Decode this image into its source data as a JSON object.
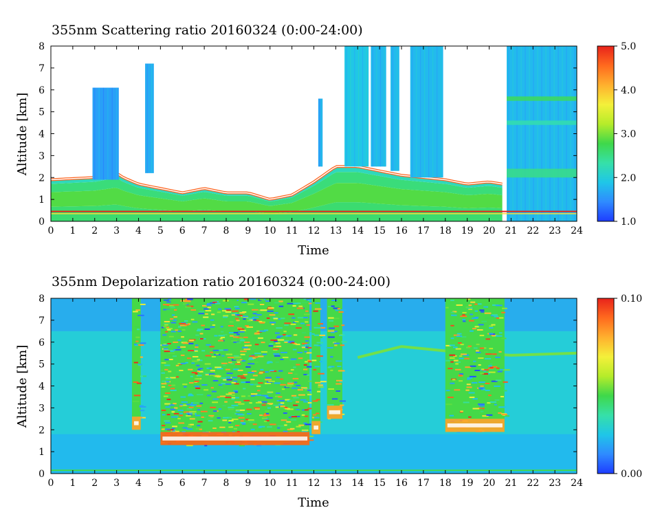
{
  "chart_data": [
    {
      "type": "heatmap",
      "title": "355nm Scattering ratio  20160324 (0:00-24:00)",
      "xlabel": "Time",
      "ylabel": "Altitude [km]",
      "xlim": [
        0,
        24
      ],
      "ylim": [
        0,
        8
      ],
      "x_ticks": [
        "0",
        "1",
        "2",
        "3",
        "4",
        "5",
        "6",
        "7",
        "8",
        "9",
        "10",
        "11",
        "12",
        "13",
        "14",
        "15",
        "16",
        "17",
        "18",
        "19",
        "20",
        "21",
        "22",
        "23",
        "24"
      ],
      "y_ticks": [
        "0",
        "1",
        "2",
        "3",
        "4",
        "5",
        "6",
        "7",
        "8"
      ],
      "colorbar": {
        "min": 1.0,
        "max": 5.0,
        "ticks": [
          "1.0",
          "2.0",
          "3.0",
          "4.0",
          "5.0"
        ],
        "tick_values": [
          1.0,
          2.0,
          3.0,
          4.0,
          5.0
        ],
        "colors": [
          "#1e3cff",
          "#2f8bff",
          "#1fc6e8",
          "#36e0a8",
          "#3fd84a",
          "#b6ec2a",
          "#f4f03a",
          "#ffb02e",
          "#ff6a1e",
          "#e8231b"
        ]
      },
      "features": {
        "boundary_layer_top_km": [
          [
            0,
            1.9
          ],
          [
            2,
            2.0
          ],
          [
            3,
            2.2
          ],
          [
            3.3,
            2.0
          ],
          [
            4,
            1.7
          ],
          [
            5,
            1.5
          ],
          [
            6,
            1.3
          ],
          [
            7,
            1.5
          ],
          [
            8,
            1.3
          ],
          [
            9,
            1.3
          ],
          [
            10,
            1.0
          ],
          [
            11,
            1.2
          ],
          [
            12,
            1.8
          ],
          [
            13,
            2.5
          ],
          [
            14,
            2.5
          ],
          [
            15,
            2.3
          ],
          [
            16,
            2.1
          ],
          [
            17,
            2.0
          ],
          [
            18,
            1.9
          ],
          [
            19,
            1.7
          ],
          [
            20,
            1.8
          ],
          [
            20.6,
            1.7
          ]
        ],
        "clouds": [
          {
            "t0": 1.9,
            "t1": 3.1,
            "z0": 1.9,
            "z1": 6.1,
            "level": 1.6
          },
          {
            "t0": 4.3,
            "t1": 4.7,
            "z0": 2.2,
            "z1": 7.2,
            "level": 1.7
          },
          {
            "t0": 12.2,
            "t1": 12.4,
            "z0": 2.5,
            "z1": 5.6,
            "level": 1.7
          },
          {
            "t0": 13.4,
            "t1": 14.5,
            "z0": 2.5,
            "z1": 8.0,
            "level": 1.9
          },
          {
            "t0": 14.6,
            "t1": 15.3,
            "z0": 2.5,
            "z1": 8.0,
            "level": 1.8
          },
          {
            "t0": 15.5,
            "t1": 15.9,
            "z0": 2.3,
            "z1": 8.0,
            "level": 1.8
          },
          {
            "t0": 16.4,
            "t1": 17.9,
            "z0": 2.0,
            "z1": 8.0,
            "level": 1.8
          },
          {
            "t0": 20.8,
            "t1": 24.0,
            "z0": 0.0,
            "z1": 8.0,
            "level": 1.8
          }
        ],
        "surface_ratio": 5.0
      }
    },
    {
      "type": "heatmap",
      "title": "355nm Depolarization ratio  20160324 (0:00-24:00)",
      "xlabel": "Time",
      "ylabel": "Altitude [km]",
      "xlim": [
        0,
        24
      ],
      "ylim": [
        0,
        8
      ],
      "x_ticks": [
        "0",
        "1",
        "2",
        "3",
        "4",
        "5",
        "6",
        "7",
        "8",
        "9",
        "10",
        "11",
        "12",
        "13",
        "14",
        "15",
        "16",
        "17",
        "18",
        "19",
        "20",
        "21",
        "22",
        "23",
        "24"
      ],
      "y_ticks": [
        "0",
        "1",
        "2",
        "3",
        "4",
        "5",
        "6",
        "7",
        "8"
      ],
      "colorbar": {
        "min": 0.0,
        "max": 0.1,
        "ticks": [
          "0.00",
          "0.10"
        ],
        "tick_values": [
          0.0,
          0.1
        ],
        "colors": [
          "#1e3cff",
          "#2f8bff",
          "#1fc6e8",
          "#36e0a8",
          "#3fd84a",
          "#b6ec2a",
          "#f4f03a",
          "#ffb02e",
          "#ff6a1e",
          "#e8231b"
        ]
      },
      "features": {
        "background": 0.025,
        "dust_layer": {
          "t0": 5.0,
          "t1": 11.8,
          "z0": 1.3,
          "z1": 8.0,
          "peak_km": 2.0,
          "level": 0.09
        },
        "dust_patches": [
          {
            "t0": 3.7,
            "t1": 4.1,
            "z0": 2.0,
            "z1": 8.0,
            "level": 0.08
          },
          {
            "t0": 11.9,
            "t1": 12.3,
            "z0": 1.8,
            "z1": 8.0,
            "level": 0.08
          },
          {
            "t0": 12.6,
            "t1": 13.3,
            "z0": 2.5,
            "z1": 8.0,
            "level": 0.08
          },
          {
            "t0": 18.0,
            "t1": 20.7,
            "z0": 1.9,
            "z1": 8.0,
            "level": 0.08
          }
        ],
        "elevated_layer_km": [
          [
            14,
            5.3
          ],
          [
            16,
            5.8
          ],
          [
            18,
            5.6
          ],
          [
            21,
            5.4
          ],
          [
            24,
            5.5
          ]
        ]
      }
    }
  ]
}
